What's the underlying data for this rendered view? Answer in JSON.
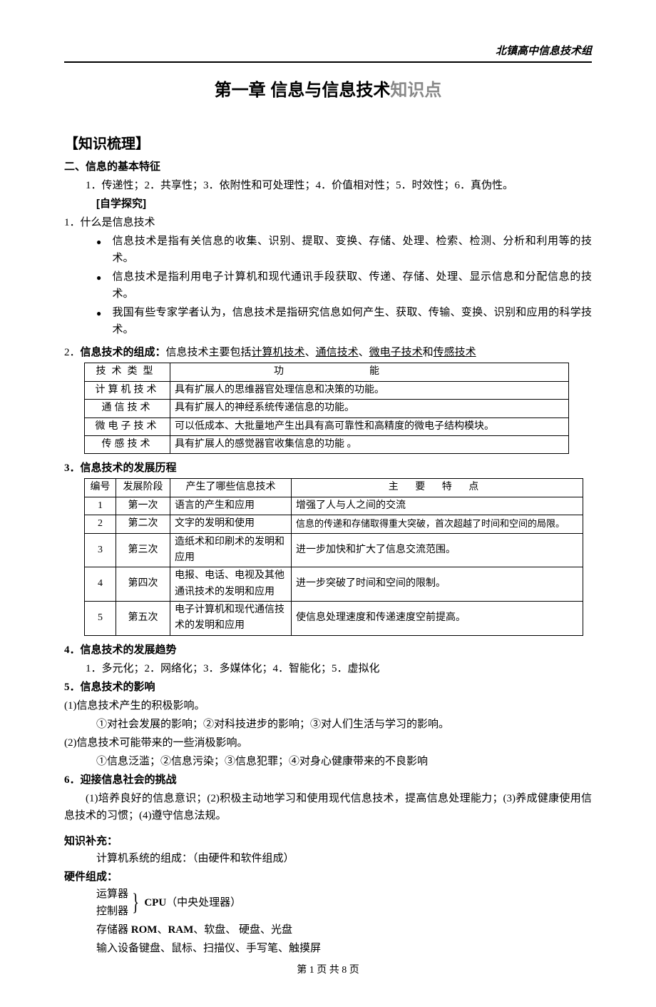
{
  "header": {
    "org": "北镇高中信息技术组"
  },
  "title": {
    "main": "第一章 信息与信息技术",
    "gray": "知识点"
  },
  "s_knowledge": "【知识梳理】",
  "s2_title": "二、信息的基本特征",
  "s2_line": "1．传递性；2．共享性；3．依附性和可处理性；4．价值相对性；5．时效性；6．真伪性。",
  "self_study": "[自学探究]",
  "q1": "1．什么是信息技术",
  "q1_bullets": [
    "信息技术是指有关信息的收集、识别、提取、变换、存储、处理、检索、检测、分析和利用等的技术。",
    "信息技术是指利用电子计算机和现代通讯手段获取、传递、存储、处理、显示信息和分配信息的技术。",
    "我国有些专家学者认为，信息技术是指研究信息如何产生、获取、传输、变换、识别和应用的科学技术。"
  ],
  "q2_pre": "2．",
  "q2_bold": "信息技术的组成：",
  "q2_rest_a": "信息技术主要包括",
  "q2_u1": "计算机技术",
  "q2_s1": "、",
  "q2_u2": "通信技术",
  "q2_s2": "、",
  "q2_u3": "微电子技术",
  "q2_s3": "和",
  "q2_u4": "传感技术",
  "t1": {
    "h1": "技术类型",
    "h2": "功能",
    "rows": [
      [
        "计算机技术",
        "具有扩展人的思维器官处理信息和决策的功能。"
      ],
      [
        "通信技术",
        "具有扩展人的神经系统传递信息的功能。"
      ],
      [
        "微电子技术",
        "可以低成本、大批量地产生出具有高可靠性和高精度的微电子结构模块。"
      ],
      [
        "传感技术",
        "具有扩展人的感觉器官收集信息的功能 。"
      ]
    ]
  },
  "q3": "3．信息技术的发展历程",
  "t2": {
    "h": [
      "编号",
      "发展阶段",
      "产生了哪些信息技术",
      "主 要 特 点"
    ],
    "rows": [
      [
        "1",
        "第一次",
        "语言的产生和应用",
        "增强了人与人之间的交流"
      ],
      [
        "2",
        "第二次",
        "文字的发明和使用",
        "信息的传递和存储取得重大突破，首次超越了时间和空间的局限。"
      ],
      [
        "3",
        "第三次",
        "造纸术和印刷术的发明和应用",
        "进一步加快和扩大了信息交流范围。"
      ],
      [
        "4",
        "第四次",
        "电报、电话、电视及其他通讯技术的发明和应用",
        "进一步突破了时间和空间的限制。"
      ],
      [
        "5",
        "第五次",
        "电子计算机和现代通信技术的发明和应用",
        "使信息处理速度和传递速度空前提高。"
      ]
    ]
  },
  "q4": "4．信息技术的发展趋势",
  "q4_line": "1．多元化；2．网络化；3．多媒体化；4．智能化；5．虚拟化",
  "q5": "5．信息技术的影响",
  "q5_p1": "(1)信息技术产生的积极影响。",
  "q5_p1a": "①对社会发展的影响；②对科技进步的影响；③对人们生活与学习的影响。",
  "q5_p2": "(2)信息技术可能带来的一些消极影响。",
  "q5_p2a": "①信息泛滥；②信息污染；③信息犯罪；④对身心健康带来的不良影响",
  "q6": "6．迎接信息社会的挑战",
  "q6_line": "(1)培养良好的信息意识；(2)积极主动地学习和使用现代信息技术，提高信息处理能力；(3)养成健康使用信息技术的习惯；(4)遵守信息法规。",
  "supp": "知识补充：",
  "supp_line": "计算机系统的组成：（由硬件和软件组成）",
  "hw": "硬件组成：",
  "hw_cpu_a": "运算器",
  "hw_cpu_b": "控制器",
  "hw_cpu_label_b": "CPU",
  "hw_cpu_label_r": "（中央处理器）",
  "hw_mem_a": "存储器 ",
  "hw_mem_b1": "ROM",
  "hw_mem_s1": "、",
  "hw_mem_b2": "RAM",
  "hw_mem_r": "、软盘、 硬盘、光盘",
  "hw_in": "输入设备键盘、鼠标、扫描仪、手写笔、触摸屏",
  "footer": "第 1 页 共 8 页"
}
